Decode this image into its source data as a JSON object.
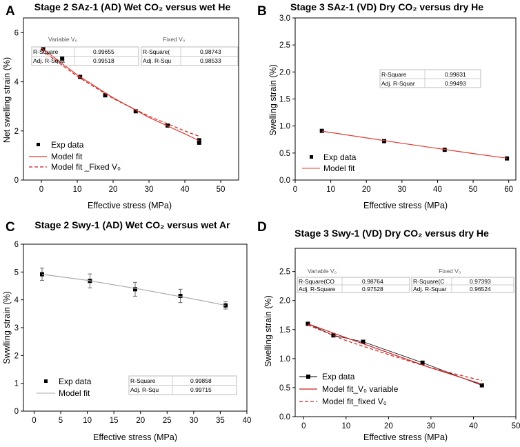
{
  "figure": {
    "background": "#ffffff",
    "fit_color": "#e03a2f",
    "fit_color_dark": "#cc1f1f",
    "grey_fit_color": "#aaaaaa"
  },
  "chart_data": [
    {
      "id": "A",
      "panel_label": "A",
      "type": "scatter",
      "title": "Stage 2 SAz-1 (AD) Wet CO₂ versus wet He",
      "xlabel": "Effective stress (MPa)",
      "ylabel": "Net swelling strain (%)",
      "xlim": [
        -5,
        55
      ],
      "ylim": [
        0,
        6.6
      ],
      "xticks": [
        0,
        10,
        20,
        30,
        40,
        50
      ],
      "yticks": [
        0,
        2,
        4,
        6
      ],
      "legend_position": "bottom-left",
      "series": [
        {
          "name": "Exp data",
          "kind": "markers",
          "x": [
            0.5,
            5.8,
            10.8,
            17.8,
            26.3,
            35.2,
            44.0,
            44.0
          ],
          "y": [
            5.35,
            4.95,
            4.2,
            3.45,
            2.8,
            2.22,
            1.62,
            1.52
          ]
        },
        {
          "name": "Model fit",
          "kind": "line",
          "style": "solid",
          "x": [
            0,
            10,
            20,
            30,
            40,
            44
          ],
          "y": [
            5.38,
            4.28,
            3.35,
            2.55,
            1.88,
            1.6
          ]
        },
        {
          "name": "Model fit _Fixed V₀",
          "kind": "line",
          "style": "dashed",
          "x": [
            0,
            10,
            20,
            30,
            40,
            44
          ],
          "y": [
            5.3,
            4.22,
            3.32,
            2.6,
            2.0,
            1.78
          ]
        }
      ],
      "stat_tables": [
        {
          "heading": "Variable V₀",
          "rows": [
            [
              "R-Square",
              "0.99655"
            ],
            [
              "Adj. R-Squa",
              "0.99518"
            ]
          ]
        },
        {
          "heading": "Fixed V₀",
          "rows": [
            [
              "R-Square(",
              "0.98743"
            ],
            [
              "Adj. R-Squ",
              "0.98533"
            ]
          ]
        }
      ]
    },
    {
      "id": "B",
      "panel_label": "B",
      "type": "scatter",
      "title": "Stage 3 SAz-1 (VD) Dry CO₂ versus dry He",
      "xlabel": "Effective stress (MPa)",
      "ylabel": "Swelling strain (%)",
      "xlim": [
        0,
        62
      ],
      "ylim": [
        0,
        3.0
      ],
      "xticks": [
        0,
        10,
        20,
        30,
        40,
        50,
        60
      ],
      "yticks": [
        0.0,
        0.5,
        1.0,
        1.5,
        2.0,
        2.5,
        3.0
      ],
      "legend_position": "bottom-left",
      "series": [
        {
          "name": "Exp data",
          "kind": "markers",
          "x": [
            7.5,
            25.0,
            42.0,
            59.5
          ],
          "y": [
            0.91,
            0.72,
            0.56,
            0.4
          ]
        },
        {
          "name": "Model fit",
          "kind": "line",
          "style": "solid",
          "x": [
            7.5,
            20,
            30,
            40,
            50,
            59.5
          ],
          "y": [
            0.905,
            0.78,
            0.68,
            0.585,
            0.49,
            0.405
          ]
        }
      ],
      "stat_tables": [
        {
          "heading": "",
          "rows": [
            [
              "R-Square",
              "0.99831"
            ],
            [
              "Adj. R-Squar",
              "0.99493"
            ]
          ]
        }
      ]
    },
    {
      "id": "C",
      "panel_label": "C",
      "type": "scatter",
      "title": "Stage 2 Swy-1 (AD) Wet CO₂ versus wet Ar",
      "xlabel": "Effective stress (MPa)",
      "ylabel": "Swwlling strain (%)",
      "xlim": [
        -2,
        40
      ],
      "ylim": [
        0,
        6
      ],
      "xticks": [
        0,
        5,
        10,
        15,
        20,
        25,
        30,
        35,
        40
      ],
      "yticks": [
        0,
        1,
        2,
        3,
        4,
        5,
        6
      ],
      "legend_position": "bottom-left",
      "series": [
        {
          "name": "Exp data",
          "kind": "markers",
          "x": [
            1.5,
            10.5,
            19.0,
            27.5,
            36.0
          ],
          "y": [
            4.92,
            4.68,
            4.38,
            4.14,
            3.8
          ],
          "yerr": [
            0.22,
            0.25,
            0.25,
            0.24,
            0.13
          ]
        },
        {
          "name": "Model fit",
          "kind": "line",
          "style": "solid",
          "x": [
            1.5,
            10,
            20,
            30,
            36
          ],
          "y": [
            4.92,
            4.7,
            4.38,
            4.03,
            3.8
          ]
        }
      ],
      "stat_tables": [
        {
          "heading": "",
          "rows": [
            [
              "R-Square",
              "0.99858"
            ],
            [
              "Adj. R-Squ",
              "0.99715"
            ]
          ]
        }
      ]
    },
    {
      "id": "D",
      "panel_label": "D",
      "type": "scatter",
      "title": "Stage 3 Swy-1 (VD) Dry CO₂ versus dry He",
      "xlabel": "Effective stress (MPa)",
      "ylabel": "Swelling strain (%)",
      "xlim": [
        -2,
        50
      ],
      "ylim": [
        0,
        2.9
      ],
      "xticks": [
        0,
        10,
        20,
        30,
        40,
        50
      ],
      "yticks": [
        0.0,
        0.5,
        1.0,
        1.5,
        2.0,
        2.5
      ],
      "legend_position": "bottom-left",
      "series": [
        {
          "name": "Exp data",
          "kind": "markers-line",
          "x": [
            1.0,
            7.0,
            14.0,
            28.0,
            42.0
          ],
          "y": [
            1.6,
            1.4,
            1.29,
            0.93,
            0.54
          ]
        },
        {
          "name": "Model fit_V₀ variable",
          "kind": "line",
          "style": "solid",
          "x": [
            1.0,
            10,
            20,
            30,
            42
          ],
          "y": [
            1.6,
            1.36,
            1.1,
            0.84,
            0.56
          ]
        },
        {
          "name": "Model fit_fixed V₀",
          "kind": "line",
          "style": "dashed",
          "x": [
            1.0,
            10,
            20,
            30,
            42
          ],
          "y": [
            1.58,
            1.31,
            1.07,
            0.84,
            0.62
          ]
        }
      ],
      "stat_tables": [
        {
          "heading": "Variable V₀",
          "rows": [
            [
              "R-Square(CO",
              "0.98764"
            ],
            [
              "Adj. R-Square",
              "0.97528"
            ]
          ]
        },
        {
          "heading": "Fixed V₀",
          "rows": [
            [
              "R-Square(C",
              "0.97393"
            ],
            [
              "Adj. R-Squar",
              "0.96524"
            ]
          ]
        }
      ]
    }
  ]
}
